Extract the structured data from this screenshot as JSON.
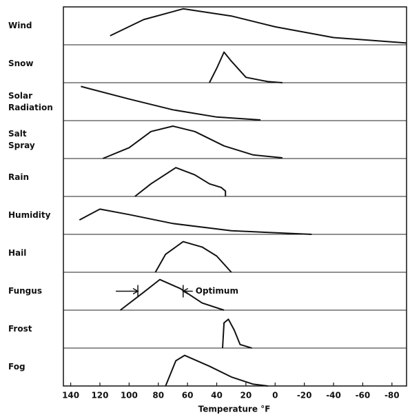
{
  "chart_data": {
    "type": "line",
    "xlabel": "Temperature °F",
    "xlim": [
      145,
      -90
    ],
    "xticks": [
      140,
      120,
      100,
      80,
      60,
      40,
      20,
      0,
      -20,
      -40,
      -60,
      -80
    ],
    "series": [
      {
        "name": "Wind",
        "color": "#111",
        "x": [
          113,
          90,
          63,
          30,
          0,
          -40,
          -90
        ],
        "values": [
          0.25,
          0.7,
          1.0,
          0.8,
          0.5,
          0.2,
          0.05
        ]
      },
      {
        "name": "Snow",
        "color": "#111",
        "x": [
          45,
          40,
          35,
          30,
          20,
          5,
          -5
        ],
        "values": [
          0,
          0.4,
          0.85,
          0.6,
          0.15,
          0.03,
          0
        ]
      },
      {
        "name": "Solar Radiation",
        "color": "#111",
        "x": [
          133,
          100,
          70,
          40,
          10
        ],
        "values": [
          0.95,
          0.6,
          0.3,
          0.1,
          0.02
        ]
      },
      {
        "name": "Salt Spray",
        "color": "#111",
        "x": [
          118,
          100,
          85,
          70,
          55,
          35,
          15,
          -5
        ],
        "values": [
          0,
          0.3,
          0.75,
          0.9,
          0.75,
          0.35,
          0.1,
          0.02
        ]
      },
      {
        "name": "Rain",
        "color": "#111",
        "x": [
          96,
          85,
          68,
          55,
          45,
          37,
          34,
          34
        ],
        "values": [
          0,
          0.35,
          0.8,
          0.6,
          0.35,
          0.25,
          0.15,
          0
        ]
      },
      {
        "name": "Humidity",
        "color": "#111",
        "x": [
          134,
          120,
          100,
          70,
          30,
          -25
        ],
        "values": [
          0.4,
          0.7,
          0.55,
          0.3,
          0.1,
          0
        ]
      },
      {
        "name": "Hail",
        "color": "#111",
        "x": [
          82,
          75,
          63,
          50,
          40,
          30
        ],
        "values": [
          0,
          0.5,
          0.85,
          0.7,
          0.45,
          0
        ]
      },
      {
        "name": "Fungus",
        "color": "#111",
        "x": [
          106,
          90,
          79,
          65,
          50,
          35
        ],
        "values": [
          0,
          0.5,
          0.85,
          0.6,
          0.2,
          0
        ]
      },
      {
        "name": "Frost",
        "color": "#111",
        "x": [
          36,
          35,
          32,
          28,
          24,
          16
        ],
        "values": [
          0,
          0.7,
          0.8,
          0.5,
          0.1,
          0
        ]
      },
      {
        "name": "Fog",
        "color": "#111",
        "x": [
          75,
          68,
          62,
          45,
          30,
          15,
          5
        ],
        "values": [
          0,
          0.7,
          0.85,
          0.55,
          0.25,
          0.05,
          0
        ]
      }
    ],
    "annotation": {
      "text": "Optimum",
      "series": 7,
      "x": [
        94,
        63
      ]
    }
  }
}
